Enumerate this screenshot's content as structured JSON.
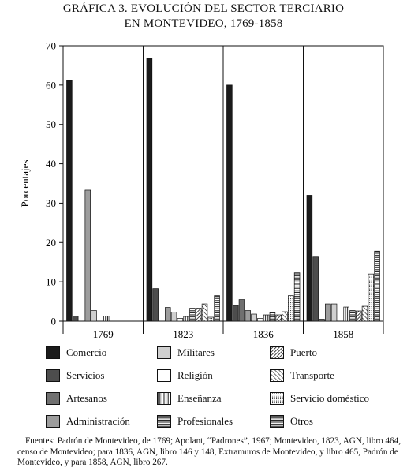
{
  "title_line1": "GRÁFICA 3. EVOLUCIÓN DEL SECTOR TERCIARIO",
  "title_line2": "EN MONTEVIDEO, 1769-1858",
  "chart_data": {
    "type": "bar",
    "title": "GRÁFICA 3. EVOLUCIÓN DEL SECTOR TERCIARIO EN MONTEVIDEO, 1769-1858",
    "ylabel": "Porcentajes",
    "xlabel": "",
    "ylim": [
      0,
      70
    ],
    "yticks": [
      0,
      10,
      20,
      30,
      40,
      50,
      60,
      70
    ],
    "categories": [
      "1769",
      "1823",
      "1836",
      "1858"
    ],
    "grid": false,
    "legend_position": "bottom",
    "series": [
      {
        "name": "Comercio",
        "values": [
          61.2,
          66.8,
          60.0,
          32.0
        ],
        "pattern": "solid-black"
      },
      {
        "name": "Servicios",
        "values": [
          1.3,
          8.3,
          4.0,
          16.3
        ],
        "pattern": "solid-dark"
      },
      {
        "name": "Artesanos",
        "values": [
          0,
          0,
          5.5,
          0.5
        ],
        "pattern": "solid-medium"
      },
      {
        "name": "Administración",
        "values": [
          33.3,
          3.5,
          2.7,
          4.4
        ],
        "pattern": "solid-gray"
      },
      {
        "name": "Militares",
        "values": [
          2.7,
          2.3,
          1.8,
          4.4
        ],
        "pattern": "solid-light"
      },
      {
        "name": "Religión",
        "values": [
          0,
          0.7,
          0.7,
          0
        ],
        "pattern": "white"
      },
      {
        "name": "Enseñanza",
        "values": [
          1.3,
          1.2,
          1.6,
          3.6
        ],
        "pattern": "vertical-lines"
      },
      {
        "name": "Profesionales",
        "values": [
          0,
          3.3,
          2.2,
          2.7
        ],
        "pattern": "horizontal-lines"
      },
      {
        "name": "Puerto",
        "values": [
          0,
          3.3,
          1.6,
          2.6
        ],
        "pattern": "diagonal-dense"
      },
      {
        "name": "Transporte",
        "values": [
          0,
          4.4,
          2.4,
          3.8
        ],
        "pattern": "diagonal-sparse"
      },
      {
        "name": "Servicio doméstico",
        "values": [
          0,
          1.0,
          6.5,
          12.0
        ],
        "pattern": "dots"
      },
      {
        "name": "Otros",
        "values": [
          0,
          6.5,
          12.3,
          17.8
        ],
        "pattern": "horizontal-lines"
      }
    ]
  },
  "legend": [
    {
      "label": "Comercio",
      "pattern": "solid-black"
    },
    {
      "label": "Militares",
      "pattern": "solid-light"
    },
    {
      "label": "Puerto",
      "pattern": "diagonal-dense"
    },
    {
      "label": "Servicios",
      "pattern": "solid-dark"
    },
    {
      "label": "Religión",
      "pattern": "white"
    },
    {
      "label": "Transporte",
      "pattern": "diagonal-sparse"
    },
    {
      "label": "Artesanos",
      "pattern": "solid-medium"
    },
    {
      "label": "Enseñanza",
      "pattern": "vertical-lines"
    },
    {
      "label": "Servicio doméstico",
      "pattern": "dots"
    },
    {
      "label": "Administración",
      "pattern": "solid-gray"
    },
    {
      "label": "Profesionales",
      "pattern": "horizontal-lines"
    },
    {
      "label": "Otros",
      "pattern": "horizontal-lines"
    }
  ],
  "source_note": "Fuentes: Padrón de Montevideo, de 1769; Apolant, “Padrones”, 1967; Montevideo, 1823, AGN, libro 464, censo de Montevideo; para 1836, AGN, libro 146 y 148, Extramuros de Montevideo, y libro 465, Padrón de Montevideo, y para 1858, AGN, libro 267.",
  "colors": {
    "solid-black": "#1b1b1b",
    "solid-dark": "#4d4d4d",
    "solid-medium": "#707070",
    "solid-gray": "#9d9d9d",
    "solid-light": "#cfcfcf",
    "white": "#ffffff",
    "stroke": "#111111"
  }
}
